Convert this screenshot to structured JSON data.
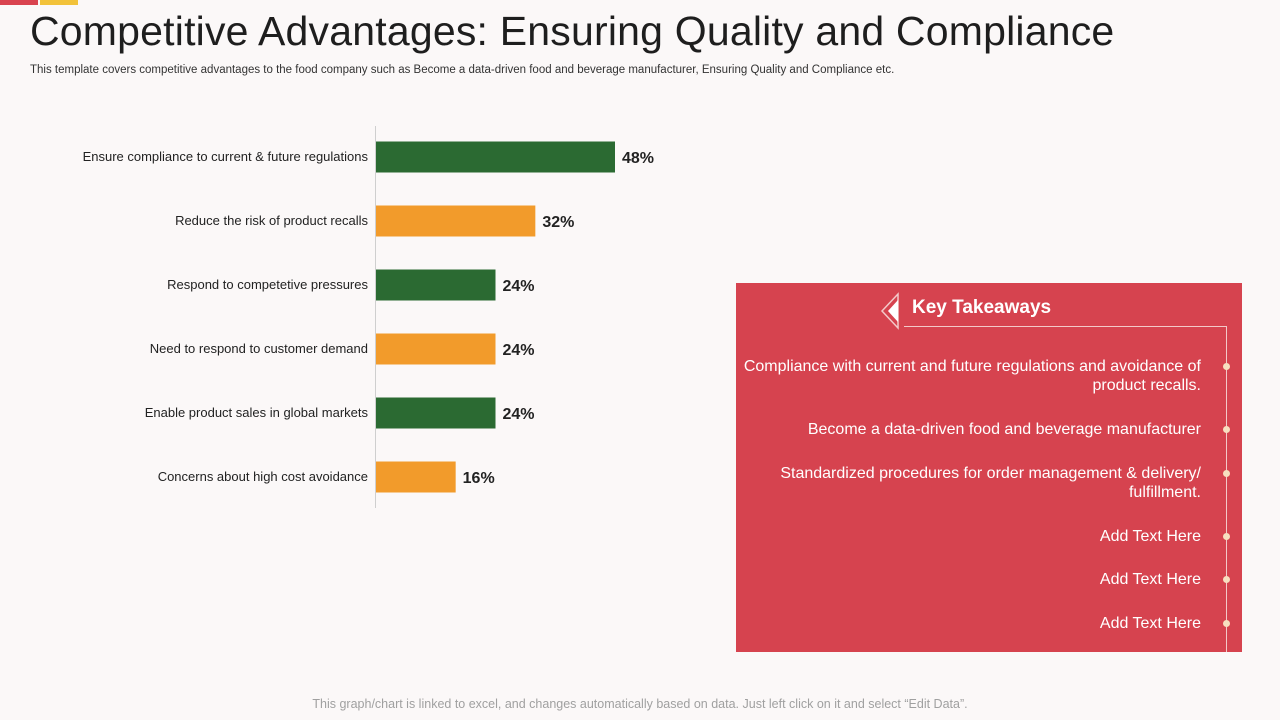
{
  "header": {
    "title": "Competitive Advantages: Ensuring Quality and Compliance",
    "subtitle": "This template covers competitive advantages to the food company such as Become a data-driven food and beverage manufacturer, Ensuring Quality and Compliance etc."
  },
  "chart_data": {
    "type": "bar",
    "orientation": "horizontal",
    "categories": [
      "Ensure compliance to current & future regulations",
      "Reduce the risk of product recalls",
      "Respond to competetive pressures",
      "Need to respond to customer demand",
      "Enable product sales in global markets",
      "Concerns about high cost avoidance"
    ],
    "values": [
      48,
      32,
      24,
      24,
      24,
      16
    ],
    "value_labels": [
      "48%",
      "32%",
      "24%",
      "24%",
      "24%",
      "16%"
    ],
    "bar_colors": [
      "#2b6a32",
      "#f29b2b",
      "#2b6a32",
      "#f29b2b",
      "#2b6a32",
      "#f29b2b"
    ],
    "xlim": [
      0,
      48
    ],
    "title": "",
    "xlabel": "",
    "ylabel": "",
    "grid": false,
    "legend": "none"
  },
  "takeaways": {
    "title": "Key Takeaways",
    "items": [
      "Compliance with current and future  regulations and avoidance of product recalls.",
      "Become a data-driven food and beverage manufacturer",
      "Standardized procedures for order management & delivery/ fulfillment.",
      "Add Text Here",
      "Add Text Here",
      "Add Text Here"
    ]
  },
  "footer": {
    "note": "This graph/chart is linked to excel, and changes automatically based on data. Just left click on it and select “Edit Data”."
  },
  "colors": {
    "accent_red": "#d9434f",
    "accent_yellow": "#f2c23a",
    "panel": "#d6434f",
    "bar_green": "#2b6a32",
    "bar_orange": "#f29b2b"
  }
}
